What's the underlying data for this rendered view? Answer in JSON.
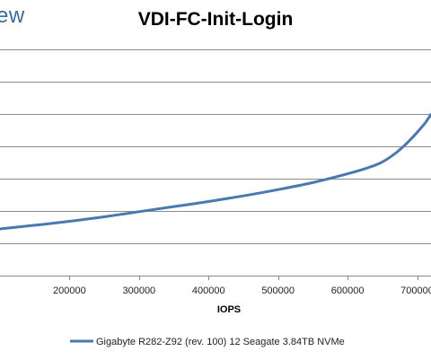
{
  "logo": {
    "text": "ew"
  },
  "chart_data": {
    "type": "line",
    "title": "VDI-FC-Init-Login",
    "xlabel": "IOPS",
    "ylabel": "",
    "xlim": [
      100000,
      720000
    ],
    "ylim": [
      0,
      8
    ],
    "x_ticks": [
      200000,
      300000,
      400000,
      500000,
      600000,
      700000
    ],
    "x_tick_labels": [
      "200000",
      "300000",
      "400000",
      "500000",
      "600000",
      "700000"
    ],
    "y_gridlines": [
      1,
      2,
      3,
      4,
      5,
      6,
      7
    ],
    "grid": true,
    "legend_position": "bottom",
    "series": [
      {
        "name": "Gigabyte R282-Z92 (rev. 100) 12 Seagate 3.84TB NVMe",
        "color": "#4a78b0",
        "x": [
          100000,
          150000,
          200000,
          250000,
          300000,
          350000,
          400000,
          450000,
          500000,
          550000,
          600000,
          630000,
          650000,
          670000,
          690000,
          710000,
          720000
        ],
        "y": [
          1.65,
          1.78,
          1.92,
          2.08,
          2.26,
          2.44,
          2.62,
          2.82,
          3.04,
          3.29,
          3.6,
          3.82,
          4.02,
          4.35,
          4.8,
          5.35,
          5.7
        ]
      }
    ]
  }
}
